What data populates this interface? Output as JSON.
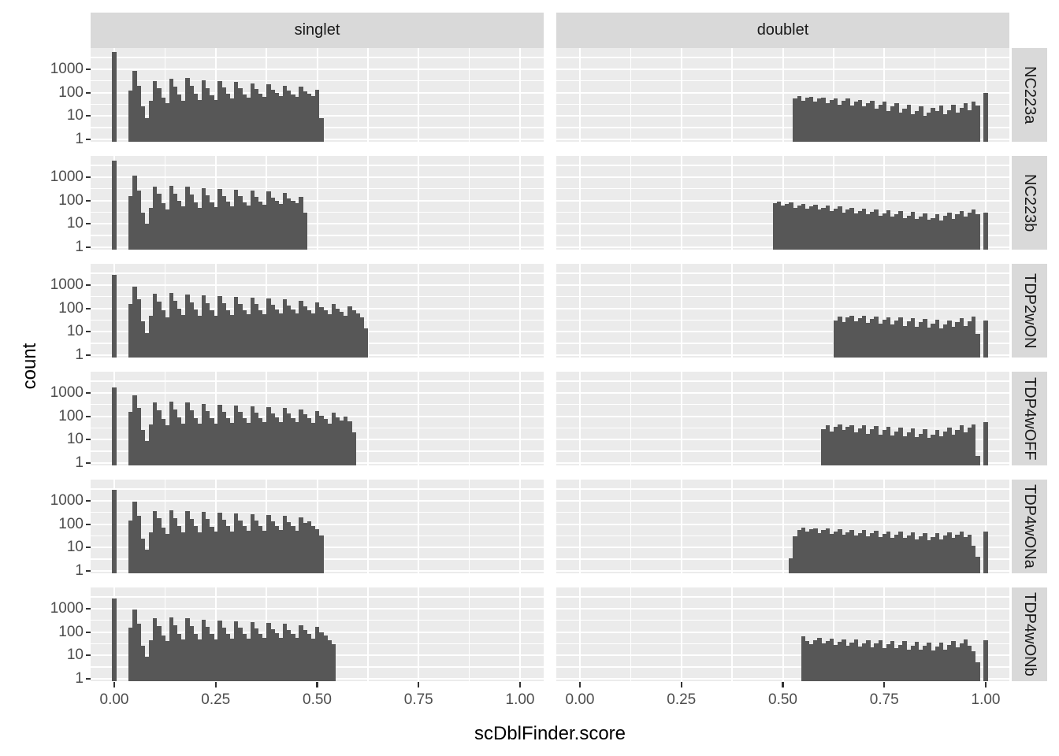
{
  "figure": {
    "x_axis_title": "scDblFinder.score",
    "y_axis_title": "count"
  },
  "chart_data": {
    "type": "bar",
    "subtype": "faceted-histogram",
    "title": "",
    "xlabel": "scDblFinder.score",
    "ylabel": "count",
    "y_scale": "log10",
    "x_range": [
      0,
      1
    ],
    "y_ticks": [
      "1000",
      "100",
      "10",
      "1"
    ],
    "y_tick_values": [
      1000,
      100,
      10,
      1
    ],
    "x_ticks": [
      "0.00",
      "0.25",
      "0.50",
      "0.75",
      "1.00"
    ],
    "x_tick_values": [
      0,
      0.25,
      0.5,
      0.75,
      1
    ],
    "col_facets": [
      "singlet",
      "doublet"
    ],
    "row_facets": [
      "NC223a",
      "NC223b",
      "TDP2wON",
      "TDP4wOFF",
      "TDP4wONa",
      "TDP4wONb"
    ],
    "binwidth": 0.01,
    "grid": "on",
    "legend": "none",
    "colors": {
      "bar": "#575757",
      "panel_bg": "#ebebeb",
      "strip_bg": "#d9d9d9",
      "gridline": "#ffffff",
      "tick_text": "#4d4d4d",
      "tick_mark": "#333333"
    },
    "facets": [
      {
        "row": "NC223a",
        "col": "singlet",
        "segments": [
          {
            "x0": -0.005,
            "counts": [
              5500
            ]
          },
          {
            "x0": 0.035,
            "counts": [
              120,
              850,
              200,
              25,
              8,
              45,
              320,
              150,
              60,
              35,
              380,
              180,
              80,
              45,
              420,
              190,
              90,
              50,
              330,
              160,
              75,
              48,
              300,
              170,
              90,
              55,
              280,
              150,
              85,
              60,
              250,
              140,
              90,
              65,
              230,
              130,
              95,
              70,
              200,
              120,
              85,
              65,
              180,
              110,
              90,
              70,
              130,
              8
            ]
          }
        ]
      },
      {
        "row": "NC223a",
        "col": "doublet",
        "segments": [
          {
            "x0": 0.525,
            "counts": [
              55,
              70,
              45,
              60,
              65,
              40,
              55,
              60,
              35,
              50,
              58,
              30,
              45,
              55,
              28,
              40,
              50,
              25,
              35,
              45,
              20,
              30,
              40,
              16,
              25,
              35,
              14,
              20,
              30,
              12,
              16,
              25,
              10,
              14,
              22,
              16,
              28,
              12,
              18,
              30,
              14,
              22,
              35,
              18,
              40,
              28
            ]
          },
          {
            "x0": 0.995,
            "counts": [
              100
            ]
          }
        ]
      },
      {
        "row": "NC223b",
        "col": "singlet",
        "segments": [
          {
            "x0": -0.005,
            "counts": [
              5000
            ]
          },
          {
            "x0": 0.035,
            "counts": [
              150,
              1150,
              260,
              30,
              10,
              50,
              400,
              190,
              75,
              40,
              430,
              200,
              95,
              55,
              380,
              175,
              85,
              50,
              340,
              165,
              80,
              52,
              310,
              160,
              88,
              56,
              290,
              155,
              86,
              60,
              260,
              145,
              92,
              66,
              240,
              135,
              96,
              70,
              210,
              125,
              100,
              75,
              140,
              30
            ]
          }
        ]
      },
      {
        "row": "NC223b",
        "col": "doublet",
        "segments": [
          {
            "x0": 0.475,
            "counts": [
              75,
              90,
              60,
              70,
              80,
              50,
              60,
              70,
              45,
              55,
              65,
              40,
              50,
              60,
              35,
              45,
              55,
              30,
              40,
              50,
              28,
              35,
              45,
              25,
              32,
              42,
              22,
              28,
              38,
              20,
              25,
              35,
              18,
              22,
              32,
              16,
              20,
              28,
              15,
              18,
              25,
              14,
              22,
              30,
              16,
              25,
              35,
              20,
              30,
              40,
              25
            ]
          },
          {
            "x0": 0.995,
            "counts": [
              30
            ]
          }
        ]
      },
      {
        "row": "TDP2wON",
        "col": "singlet",
        "segments": [
          {
            "x0": -0.005,
            "counts": [
              2700
            ]
          },
          {
            "x0": 0.035,
            "counts": [
              160,
              870,
              240,
              28,
              9,
              48,
              420,
              200,
              80,
              42,
              450,
              210,
              95,
              52,
              400,
              185,
              88,
              50,
              360,
              170,
              82,
              50,
              330,
              165,
              85,
              52,
              300,
              158,
              86,
              55,
              280,
              150,
              84,
              58,
              260,
              142,
              88,
              60,
              240,
              132,
              90,
              62,
              210,
              122,
              86,
              60,
              180,
              110,
              80,
              55,
              150,
              95,
              70,
              50,
              120,
              80,
              60,
              40,
              14
            ]
          }
        ]
      },
      {
        "row": "TDP2wON",
        "col": "doublet",
        "segments": [
          {
            "x0": 0.625,
            "counts": [
              30,
              45,
              25,
              40,
              50,
              28,
              38,
              48,
              24,
              35,
              45,
              22,
              32,
              42,
              20,
              30,
              40,
              18,
              28,
              38,
              16,
              25,
              35,
              15,
              22,
              32,
              14,
              20,
              30,
              16,
              25,
              38,
              18,
              28,
              45,
              8
            ]
          },
          {
            "x0": 0.995,
            "counts": [
              30
            ]
          }
        ]
      },
      {
        "row": "TDP4wOFF",
        "col": "singlet",
        "segments": [
          {
            "x0": -0.005,
            "counts": [
              1700
            ]
          },
          {
            "x0": 0.035,
            "counts": [
              150,
              770,
              230,
              26,
              9,
              46,
              380,
              185,
              75,
              40,
              420,
              195,
              88,
              48,
              380,
              178,
              84,
              48,
              340,
              168,
              80,
              50,
              310,
              160,
              84,
              52,
              290,
              152,
              82,
              54,
              270,
              144,
              86,
              56,
              250,
              136,
              88,
              58,
              230,
              128,
              84,
              56,
              200,
              118,
              80,
              54,
              170,
              105,
              75,
              50,
              140,
              90,
              65,
              95,
              60,
              20
            ]
          }
        ]
      },
      {
        "row": "TDP4wOFF",
        "col": "doublet",
        "segments": [
          {
            "x0": 0.595,
            "counts": [
              28,
              40,
              22,
              35,
              45,
              25,
              35,
              42,
              20,
              30,
              40,
              18,
              28,
              38,
              16,
              25,
              35,
              15,
              22,
              32,
              14,
              20,
              30,
              13,
              18,
              28,
              12,
              16,
              25,
              14,
              22,
              32,
              16,
              26,
              40,
              20,
              32,
              45,
              2
            ]
          },
          {
            "x0": 0.995,
            "counts": [
              57
            ]
          }
        ]
      },
      {
        "row": "TDP4wONa",
        "col": "singlet",
        "segments": [
          {
            "x0": -0.005,
            "counts": [
              2900
            ]
          },
          {
            "x0": 0.035,
            "counts": [
              140,
              900,
              220,
              24,
              8,
              44,
              360,
              175,
              70,
              38,
              400,
              185,
              85,
              46,
              370,
              172,
              82,
              46,
              330,
              162,
              78,
              48,
              300,
              156,
              82,
              50,
              280,
              148,
              80,
              52,
              260,
              140,
              84,
              54,
              240,
              132,
              86,
              56,
              220,
              124,
              82,
              54,
              190,
              115,
              135,
              80,
              60,
              33
            ]
          }
        ]
      },
      {
        "row": "TDP4wONa",
        "col": "doublet",
        "segments": [
          {
            "x0": 0.515,
            "counts": [
              3.5,
              30,
              55,
              70,
              48,
              60,
              68,
              42,
              55,
              65,
              38,
              50,
              62,
              35,
              45,
              58,
              32,
              42,
              55,
              30,
              40,
              52,
              28,
              38,
              50,
              26,
              35,
              48,
              25,
              32,
              45,
              22,
              30,
              42,
              20,
              28,
              40,
              22,
              32,
              45,
              25,
              35,
              50,
              28,
              35,
              12,
              4
            ]
          },
          {
            "x0": 0.995,
            "counts": [
              50
            ]
          }
        ]
      },
      {
        "row": "TDP4wONb",
        "col": "singlet",
        "segments": [
          {
            "x0": -0.005,
            "counts": [
              2700
            ]
          },
          {
            "x0": 0.035,
            "counts": [
              150,
              950,
              230,
              26,
              9,
              46,
              380,
              180,
              72,
              40,
              410,
              190,
              86,
              48,
              380,
              176,
              84,
              48,
              340,
              166,
              80,
              50,
              310,
              158,
              84,
              52,
              290,
              150,
              82,
              54,
              270,
              142,
              86,
              56,
              250,
              134,
              88,
              58,
              230,
              126,
              84,
              56,
              200,
              118,
              80,
              54,
              170,
              100,
              70,
              45,
              30
            ]
          }
        ]
      },
      {
        "row": "TDP4wONb",
        "col": "doublet",
        "segments": [
          {
            "x0": 0.545,
            "counts": [
              66,
              40,
              30,
              45,
              55,
              32,
              42,
              52,
              28,
              38,
              50,
              26,
              36,
              48,
              24,
              34,
              46,
              22,
              32,
              44,
              20,
              30,
              42,
              20,
              28,
              40,
              18,
              26,
              38,
              18,
              25,
              36,
              16,
              24,
              35,
              18,
              28,
              42,
              22,
              32,
              48,
              25,
              15,
              5
            ]
          },
          {
            "x0": 0.995,
            "counts": [
              45
            ]
          }
        ]
      }
    ]
  }
}
